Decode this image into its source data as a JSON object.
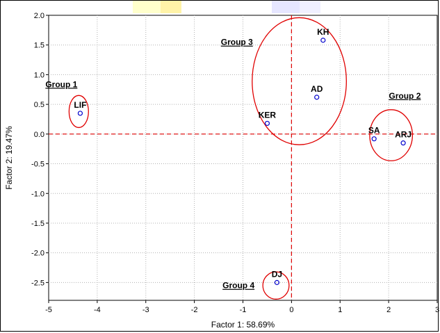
{
  "chart_data": {
    "type": "scatter",
    "xlabel": "Factor 1: 58.69%",
    "ylabel": "Factor 2: 19.47%",
    "xlim": [
      -5,
      3
    ],
    "ylim": [
      -2.8,
      2.0
    ],
    "xticks": [
      -5,
      -4,
      -3,
      -2,
      -1,
      0,
      1,
      2,
      3
    ],
    "yticks": [
      -2.5,
      -2.0,
      -1.5,
      -1.0,
      -0.5,
      0.0,
      0.5,
      1.0,
      1.5,
      2.0
    ],
    "xtick_labels": [
      "-5",
      "-4",
      "-3",
      "-2",
      "-1",
      "0",
      "1",
      "2",
      "3"
    ],
    "ytick_labels": [
      "-2.5",
      "-2.0",
      "-1.5",
      "-1.0",
      "-0.5",
      "0.0",
      "0.5",
      "1.0",
      "1.5",
      "2.0"
    ],
    "grid": true,
    "marker_color": "#0000cc",
    "reference_line_color": "#e00000",
    "group_color": "#e00000",
    "points": [
      {
        "label": "KH",
        "x": 0.65,
        "y": 1.58
      },
      {
        "label": "AD",
        "x": 0.52,
        "y": 0.62
      },
      {
        "label": "KER",
        "x": -0.5,
        "y": 0.18
      },
      {
        "label": "LIF",
        "x": -4.35,
        "y": 0.35
      },
      {
        "label": "SA",
        "x": 1.7,
        "y": -0.08
      },
      {
        "label": "ARJ",
        "x": 2.3,
        "y": -0.15
      },
      {
        "label": "DJ",
        "x": -0.3,
        "y": -2.5
      }
    ],
    "groups": [
      {
        "label": "Group 1",
        "cx": -4.38,
        "cy": 0.38,
        "rx": 0.2,
        "ry": 0.27
      },
      {
        "label": "Group 2",
        "cx": 2.05,
        "cy": -0.02,
        "rx": 0.44,
        "ry": 0.43
      },
      {
        "label": "Group 3",
        "cx": 0.16,
        "cy": 0.89,
        "rx": 0.97,
        "ry": 1.07
      },
      {
        "label": "Group 4",
        "cx": -0.32,
        "cy": -2.55,
        "rx": 0.27,
        "ry": 0.23
      }
    ]
  }
}
